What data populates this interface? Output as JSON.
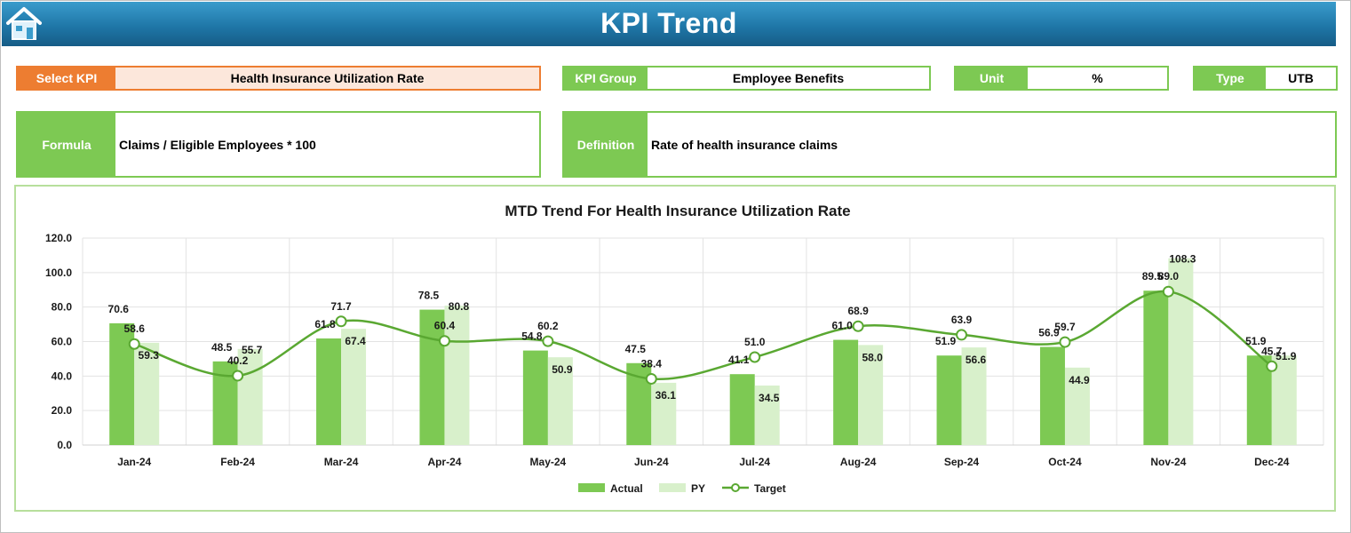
{
  "header": {
    "title": "KPI Trend",
    "home_icon": "home-icon"
  },
  "fields": {
    "select_kpi": {
      "label": "Select KPI",
      "value": "Health Insurance Utilization Rate"
    },
    "kpi_group": {
      "label": "KPI Group",
      "value": "Employee Benefits"
    },
    "unit": {
      "label": "Unit",
      "value": "%"
    },
    "type": {
      "label": "Type",
      "value": "UTB"
    },
    "formula": {
      "label": "Formula",
      "value": "Claims / Eligible Employees * 100"
    },
    "definition": {
      "label": "Definition",
      "value": "Rate of health insurance claims"
    }
  },
  "colors": {
    "accent_green": "#7dc953",
    "py_green": "#d8f0cb",
    "target_line": "#5aa832",
    "orange": "#ed7d31",
    "header_blue": "#1f77a8"
  },
  "chart_data": {
    "type": "bar",
    "title": "MTD Trend For Health Insurance Utilization Rate",
    "categories": [
      "Jan-24",
      "Feb-24",
      "Mar-24",
      "Apr-24",
      "May-24",
      "Jun-24",
      "Jul-24",
      "Aug-24",
      "Sep-24",
      "Oct-24",
      "Nov-24",
      "Dec-24"
    ],
    "series": [
      {
        "name": "Actual",
        "kind": "bar",
        "values": [
          70.6,
          48.5,
          61.8,
          78.5,
          54.8,
          47.5,
          41.1,
          61.0,
          51.9,
          56.9,
          89.5,
          51.9
        ]
      },
      {
        "name": "PY",
        "kind": "bar",
        "values": [
          59.3,
          55.7,
          67.4,
          80.8,
          50.9,
          36.1,
          34.5,
          58.0,
          56.6,
          44.9,
          108.3,
          51.9
        ]
      },
      {
        "name": "Target",
        "kind": "line",
        "values": [
          58.6,
          40.2,
          71.7,
          60.4,
          60.2,
          38.4,
          51.0,
          68.9,
          63.9,
          59.7,
          89.0,
          45.7
        ]
      }
    ],
    "yticks": [
      "0.0",
      "20.0",
      "40.0",
      "60.0",
      "80.0",
      "100.0",
      "120.0"
    ],
    "ylim": [
      0,
      120
    ],
    "grid": true,
    "legend": "bottom"
  }
}
